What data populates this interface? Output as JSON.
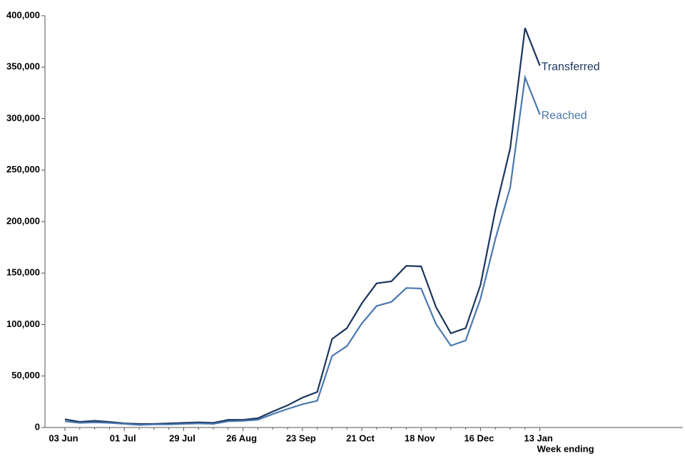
{
  "chart_data": {
    "type": "line",
    "x_label": "Week ending",
    "categories": [
      "03 Jun",
      null,
      null,
      null,
      "01 Jul",
      null,
      null,
      null,
      "29 Jul",
      null,
      null,
      null,
      "26 Aug",
      null,
      null,
      null,
      "23 Sep",
      null,
      null,
      null,
      "21 Oct",
      null,
      null,
      null,
      "18 Nov",
      null,
      null,
      null,
      "16 Dec",
      null,
      null,
      null,
      "13 Jan"
    ],
    "series": [
      {
        "name": "Transferred",
        "color": "#1b365d",
        "values": [
          8000,
          5500,
          6500,
          5500,
          4000,
          3500,
          3500,
          4000,
          4500,
          5000,
          4500,
          7500,
          7500,
          9000,
          15500,
          21500,
          29000,
          34500,
          86000,
          96500,
          120500,
          140000,
          142000,
          157000,
          156500,
          117000,
          91500,
          96500,
          138500,
          211000,
          271000,
          388000,
          351500
        ]
      },
      {
        "name": "Reached",
        "color": "#4a78b0",
        "values": [
          6000,
          4500,
          5000,
          4500,
          3500,
          2500,
          3000,
          3000,
          3500,
          4000,
          3500,
          6000,
          6500,
          7500,
          13000,
          18000,
          22500,
          26000,
          69500,
          79000,
          101000,
          118000,
          122000,
          135500,
          135000,
          100500,
          79500,
          84500,
          125000,
          183000,
          233000,
          340000,
          304000
        ]
      }
    ],
    "ylim": [
      0,
      400000
    ],
    "yticks": [
      0,
      {
        "value": 50000,
        "label": "50,000"
      },
      {
        "value": 100000,
        "label": "100,000"
      },
      {
        "value": 150000,
        "label": "150,000"
      },
      {
        "value": 200000,
        "label": "200,000"
      },
      {
        "value": 250000,
        "label": "250,000"
      },
      {
        "value": 300000,
        "label": "300,000"
      },
      {
        "value": 350000,
        "label": "350,000"
      },
      {
        "value": 400000,
        "label": "400,000"
      }
    ]
  }
}
